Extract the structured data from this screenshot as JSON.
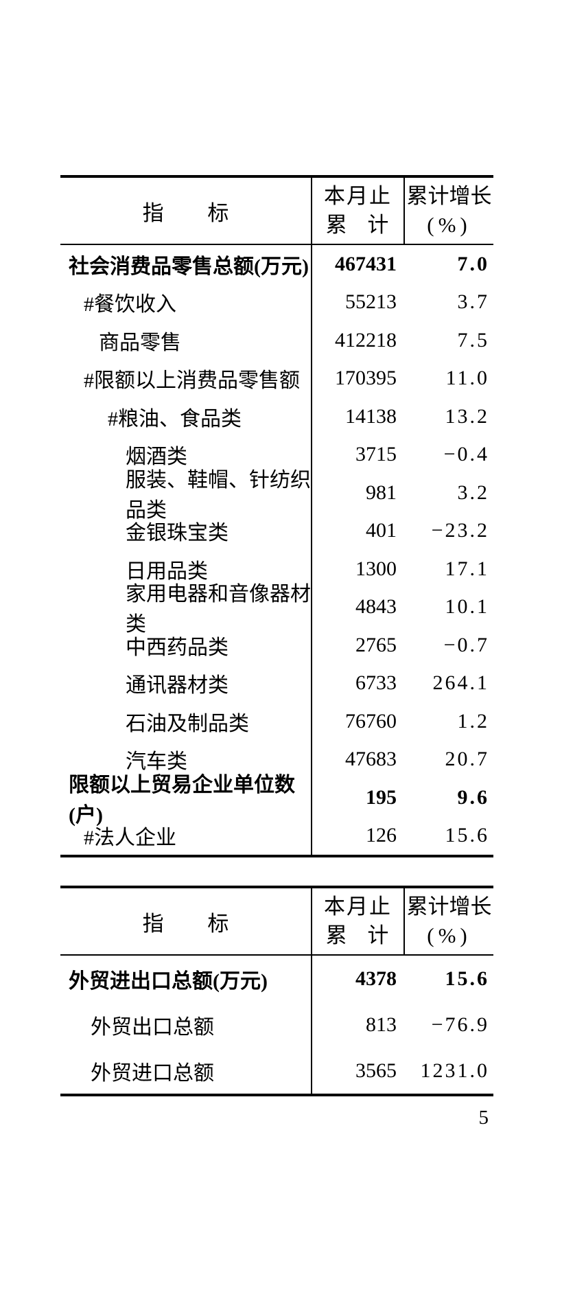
{
  "page": {
    "number": "5",
    "background_color": "#ffffff",
    "text_color": "#000000"
  },
  "tables": [
    {
      "name": "consumer-retail-table",
      "header": {
        "indicator": "指 标",
        "cumulative_line1": "本月止",
        "cumulative_line2": "累 计",
        "growth_line1": "累计增长",
        "growth_line2": "(%)"
      },
      "rows": [
        {
          "label": "社会消费品零售总额(万元)",
          "cumulative": "467431",
          "growth": "7.0",
          "bold": true,
          "indent": 0
        },
        {
          "label": "#餐饮收入",
          "cumulative": "55213",
          "growth": "3.7",
          "bold": false,
          "indent": 1
        },
        {
          "label": "商品零售",
          "cumulative": "412218",
          "growth": "7.5",
          "bold": false,
          "indent": 2
        },
        {
          "label": "#限额以上消费品零售额",
          "cumulative": "170395",
          "growth": "11.0",
          "bold": false,
          "indent": 1
        },
        {
          "label": "#粮油、食品类",
          "cumulative": "14138",
          "growth": "13.2",
          "bold": false,
          "indent": 3
        },
        {
          "label": "烟酒类",
          "cumulative": "3715",
          "growth": "−0.4",
          "bold": false,
          "indent": 4
        },
        {
          "label": "服装、鞋帽、针纺织品类",
          "cumulative": "981",
          "growth": "3.2",
          "bold": false,
          "indent": 4
        },
        {
          "label": "金银珠宝类",
          "cumulative": "401",
          "growth": "−23.2",
          "bold": false,
          "indent": 4
        },
        {
          "label": "日用品类",
          "cumulative": "1300",
          "growth": "17.1",
          "bold": false,
          "indent": 4
        },
        {
          "label": "家用电器和音像器材类",
          "cumulative": "4843",
          "growth": "10.1",
          "bold": false,
          "indent": 4
        },
        {
          "label": "中西药品类",
          "cumulative": "2765",
          "growth": "−0.7",
          "bold": false,
          "indent": 4
        },
        {
          "label": "通讯器材类",
          "cumulative": "6733",
          "growth": "264.1",
          "bold": false,
          "indent": 4
        },
        {
          "label": "石油及制品类",
          "cumulative": "76760",
          "growth": "1.2",
          "bold": false,
          "indent": 4
        },
        {
          "label": "汽车类",
          "cumulative": "47683",
          "growth": "20.7",
          "bold": false,
          "indent": 4
        },
        {
          "label": "限额以上贸易企业单位数(户)",
          "cumulative": "195",
          "growth": "9.6",
          "bold": true,
          "indent": 0
        },
        {
          "label": "#法人企业",
          "cumulative": "126",
          "growth": "15.6",
          "bold": false,
          "indent": 1
        }
      ]
    },
    {
      "name": "foreign-trade-table",
      "header": {
        "indicator": "指 标",
        "cumulative_line1": "本月止",
        "cumulative_line2": "累 计",
        "growth_line1": "累计增长",
        "growth_line2": "(%)"
      },
      "rows": [
        {
          "label": "外贸进出口总额(万元)",
          "cumulative": "4378",
          "growth": "15.6",
          "bold": true,
          "indent": 0
        },
        {
          "label": "外贸出口总额",
          "cumulative": "813",
          "growth": "−76.9",
          "bold": false,
          "indent": 5
        },
        {
          "label": "外贸进口总额",
          "cumulative": "3565",
          "growth": "1231.0",
          "bold": false,
          "indent": 5
        }
      ]
    }
  ]
}
